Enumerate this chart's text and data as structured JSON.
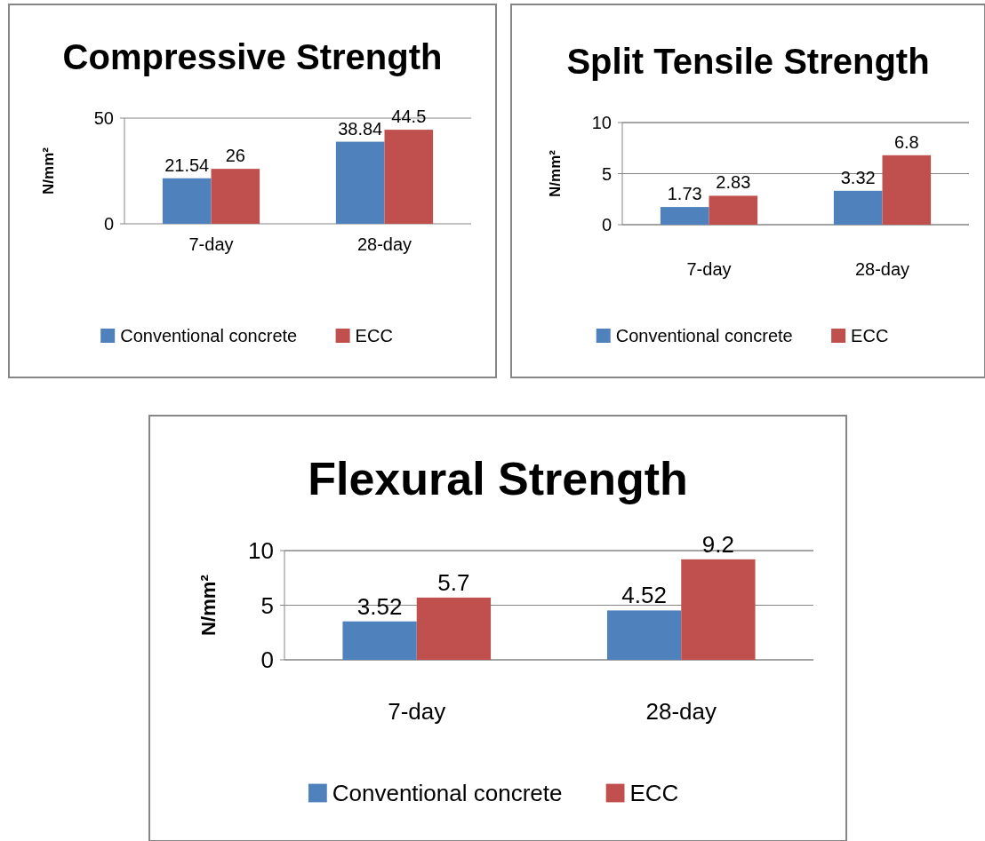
{
  "chart_data": [
    {
      "type": "bar",
      "title": "Compressive Strength",
      "ylabel": "N/mm²",
      "categories": [
        "7-day",
        "28-day"
      ],
      "series": [
        {
          "name": "Conventional concrete",
          "color": "#4f81bd",
          "values": [
            21.54,
            38.84
          ]
        },
        {
          "name": "ECC",
          "color": "#c0504d",
          "values": [
            26,
            44.5
          ]
        }
      ],
      "ylim": [
        0,
        50
      ],
      "yticks": [
        0,
        50
      ],
      "legend": "bottom",
      "data_labels": true
    },
    {
      "type": "bar",
      "title": "Split Tensile Strength",
      "ylabel": "N/mm²",
      "categories": [
        "7-day",
        "28-day"
      ],
      "series": [
        {
          "name": "Conventional concrete",
          "color": "#4f81bd",
          "values": [
            1.73,
            3.32
          ]
        },
        {
          "name": "ECC",
          "color": "#c0504d",
          "values": [
            2.83,
            6.8
          ]
        }
      ],
      "ylim": [
        0,
        10
      ],
      "yticks": [
        0,
        5,
        10
      ],
      "grid": "y",
      "legend": "bottom",
      "data_labels": true
    },
    {
      "type": "bar",
      "title": "Flexural Strength",
      "ylabel": "N/mm²",
      "categories": [
        "7-day",
        "28-day"
      ],
      "series": [
        {
          "name": "Conventional concrete",
          "color": "#4f81bd",
          "values": [
            3.52,
            4.52
          ]
        },
        {
          "name": "ECC",
          "color": "#c0504d",
          "values": [
            5.7,
            9.2
          ]
        }
      ],
      "ylim": [
        0,
        10
      ],
      "yticks": [
        0,
        5,
        10
      ],
      "grid": "y",
      "legend": "bottom",
      "data_labels": true
    }
  ]
}
